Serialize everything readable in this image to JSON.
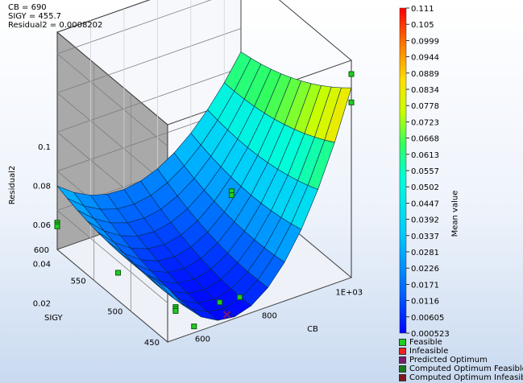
{
  "info": {
    "line1": "CB = 690",
    "line2": "SIGY = 455.7",
    "line3": "Residual2 = 0.0008202"
  },
  "chart_data": {
    "type": "surface3d",
    "zlabel": "Residual2",
    "xlabel": "CB",
    "ylabel": "SIGY",
    "z_ticks": [
      "0.02",
      "0.04",
      "0.06",
      "0.08",
      "0.1"
    ],
    "x_ticks": [
      "600",
      "800",
      "1E+03"
    ],
    "y_ticks": [
      "450",
      "500",
      "550",
      "600"
    ],
    "x_range": [
      500,
      1050
    ],
    "y_range": [
      450,
      600
    ],
    "z_range": [
      0,
      0.111
    ],
    "colorbar": {
      "label": "Mean value",
      "ticks": [
        "0.111",
        "0.105",
        "0.0999",
        "0.0944",
        "0.0889",
        "0.0834",
        "0.0778",
        "0.0723",
        "0.0668",
        "0.0613",
        "0.0557",
        "0.0502",
        "0.0447",
        "0.0392",
        "0.0337",
        "0.0281",
        "0.0226",
        "0.0171",
        "0.0116",
        "0.00605",
        "0.000523"
      ]
    },
    "points": [
      {
        "cb": 1050,
        "sigy": 450,
        "z": 0.104
      },
      {
        "cb": 1050,
        "sigy": 450,
        "z": 0.0895
      },
      {
        "cb": 500,
        "sigy": 600,
        "z": 0.0137
      },
      {
        "cb": 500,
        "sigy": 600,
        "z": 0.0127
      },
      {
        "cb": 500,
        "sigy": 600,
        "z": 0.0118
      },
      {
        "cb": 550,
        "sigy": 540,
        "z": 0.004
      },
      {
        "cb": 590,
        "sigy": 480,
        "z": 0.003
      },
      {
        "cb": 590,
        "sigy": 480,
        "z": 0.002
      },
      {
        "cb": 590,
        "sigy": 480,
        "z": 0.001
      },
      {
        "cb": 590,
        "sigy": 455,
        "z": 0.001
      },
      {
        "cb": 700,
        "sigy": 470,
        "z": 0.002
      },
      {
        "cb": 760,
        "sigy": 470,
        "z": 0.001
      },
      {
        "cb": 1000,
        "sigy": 590,
        "z": 0.003
      },
      {
        "cb": 1000,
        "sigy": 590,
        "z": 0.001
      }
    ],
    "optimum": {
      "cb": 690,
      "sigy": 455.7,
      "z": 0.0008202
    },
    "legend": [
      {
        "label": "Feasible",
        "color": "#22cc22"
      },
      {
        "label": "Infeasible",
        "color": "#ee2222"
      },
      {
        "label": "Predicted Optimum",
        "color": "#7a1a6a"
      },
      {
        "label": "Computed Optimum Feasible",
        "color": "#1a7a1a"
      },
      {
        "label": "Computed Optimum Infeasible",
        "color": "#7a1a1a"
      }
    ]
  }
}
